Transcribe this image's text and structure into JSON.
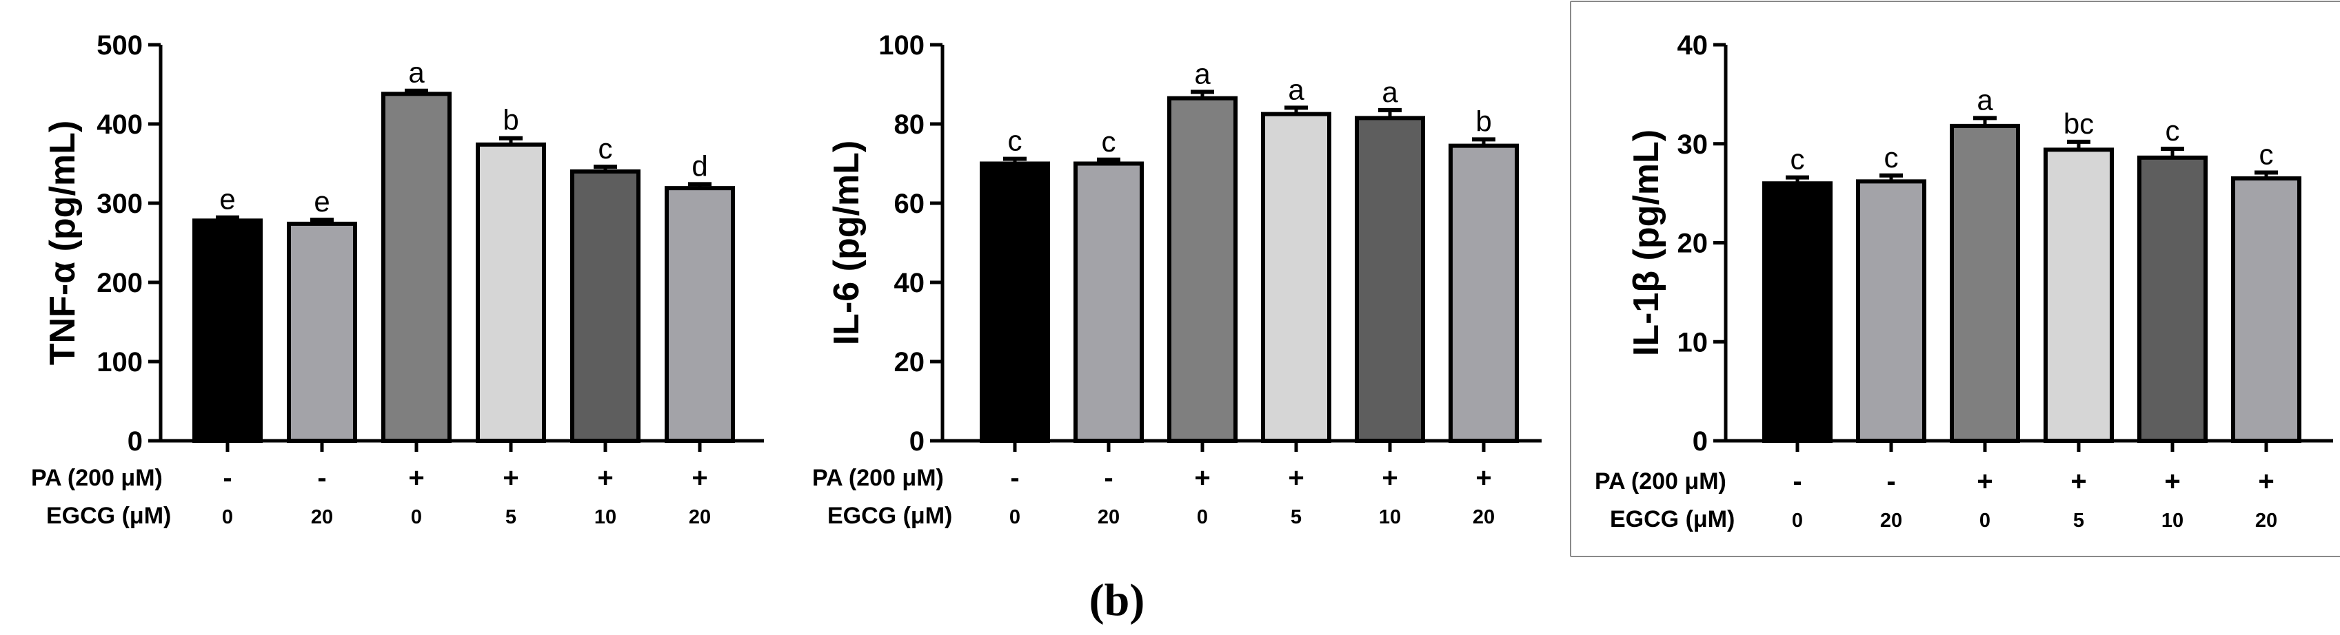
{
  "figure_caption": "(b)",
  "colors": {
    "axis": "#000000",
    "bar_fills": [
      "#000000",
      "#a3a3a8",
      "#7f7f7f",
      "#d6d6d6",
      "#5e5e5e",
      "#a3a3a8"
    ]
  },
  "chart_data": [
    {
      "type": "bar",
      "ylabel": "TNF-α (pg/mL)",
      "ylim": [
        0,
        500
      ],
      "yticks": [
        0,
        100,
        200,
        300,
        400,
        500
      ],
      "ytick_labels": [
        "0",
        "100",
        "200",
        "300",
        "400",
        "500"
      ],
      "row_labels": [
        "PA (200 μM)",
        "EGCG (μM)"
      ],
      "pa": [
        "-",
        "-",
        "+",
        "+",
        "+",
        "+"
      ],
      "egcg": [
        "0",
        "20",
        "0",
        "5",
        "10",
        "20"
      ],
      "values": [
        278,
        274,
        438,
        374,
        340,
        319
      ],
      "errors": [
        4,
        5,
        4,
        8,
        6,
        5
      ],
      "significance": [
        "e",
        "e",
        "a",
        "b",
        "c",
        "d"
      ]
    },
    {
      "type": "bar",
      "ylabel": "IL-6 (pg/mL)",
      "ylim": [
        0,
        100
      ],
      "yticks": [
        0,
        20,
        40,
        60,
        80,
        100
      ],
      "ytick_labels": [
        "0",
        "20",
        "40",
        "60",
        "80",
        "100"
      ],
      "row_labels": [
        "PA (200 μM)",
        "EGCG (μM)"
      ],
      "pa": [
        "-",
        "-",
        "+",
        "+",
        "+",
        "+"
      ],
      "egcg": [
        "0",
        "20",
        "0",
        "5",
        "10",
        "20"
      ],
      "values": [
        70,
        70,
        86.5,
        82.5,
        81.5,
        74.5
      ],
      "errors": [
        1.2,
        1.0,
        1.6,
        1.6,
        2.0,
        1.6
      ],
      "significance": [
        "c",
        "c",
        "a",
        "a",
        "a",
        "b"
      ]
    },
    {
      "type": "bar",
      "ylabel": "IL-1β (pg/mL)",
      "ylim": [
        0,
        40
      ],
      "yticks": [
        0,
        10,
        20,
        30,
        40
      ],
      "ytick_labels": [
        "0",
        "10",
        "20",
        "30",
        "40"
      ],
      "row_labels": [
        "PA (200 μM)",
        "EGCG (μM)"
      ],
      "pa": [
        "-",
        "-",
        "+",
        "+",
        "+",
        "+"
      ],
      "egcg": [
        "0",
        "20",
        "0",
        "5",
        "10",
        "20"
      ],
      "values": [
        26,
        26.2,
        31.8,
        29.4,
        28.6,
        26.5
      ],
      "errors": [
        0.6,
        0.6,
        0.8,
        0.8,
        0.9,
        0.6
      ],
      "significance": [
        "c",
        "c",
        "a",
        "bc",
        "c",
        "c"
      ]
    }
  ]
}
